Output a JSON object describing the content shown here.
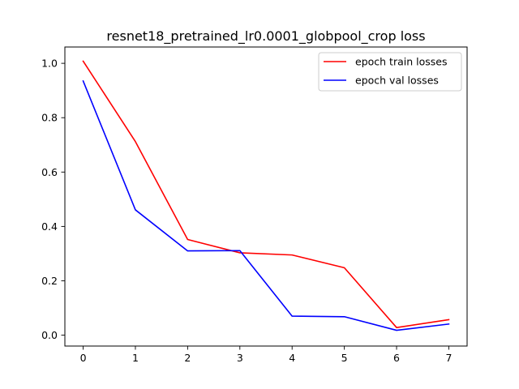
{
  "chart_data": {
    "type": "line",
    "title": "resnet18_pretrained_lr0.0001_globpool_crop loss",
    "xlabel": "",
    "ylabel": "",
    "x": [
      0,
      1,
      2,
      3,
      4,
      5,
      6,
      7
    ],
    "xlim": [
      -0.35,
      7.35
    ],
    "ylim": [
      -0.04,
      1.06
    ],
    "x_ticks": [
      0,
      1,
      2,
      3,
      4,
      5,
      6,
      7
    ],
    "y_ticks": [
      0.0,
      0.2,
      0.4,
      0.6,
      0.8,
      1.0
    ],
    "y_tick_labels": [
      "0.0",
      "0.2",
      "0.4",
      "0.6",
      "0.8",
      "1.0"
    ],
    "grid": false,
    "legend_position": "top-right",
    "series": [
      {
        "name": "epoch train losses",
        "color": "#ff0000",
        "values": [
          1.008,
          0.712,
          0.352,
          0.303,
          0.295,
          0.248,
          0.028,
          0.057
        ]
      },
      {
        "name": "epoch val losses",
        "color": "#0000ff",
        "values": [
          0.935,
          0.461,
          0.31,
          0.311,
          0.07,
          0.068,
          0.018,
          0.041
        ]
      }
    ]
  }
}
